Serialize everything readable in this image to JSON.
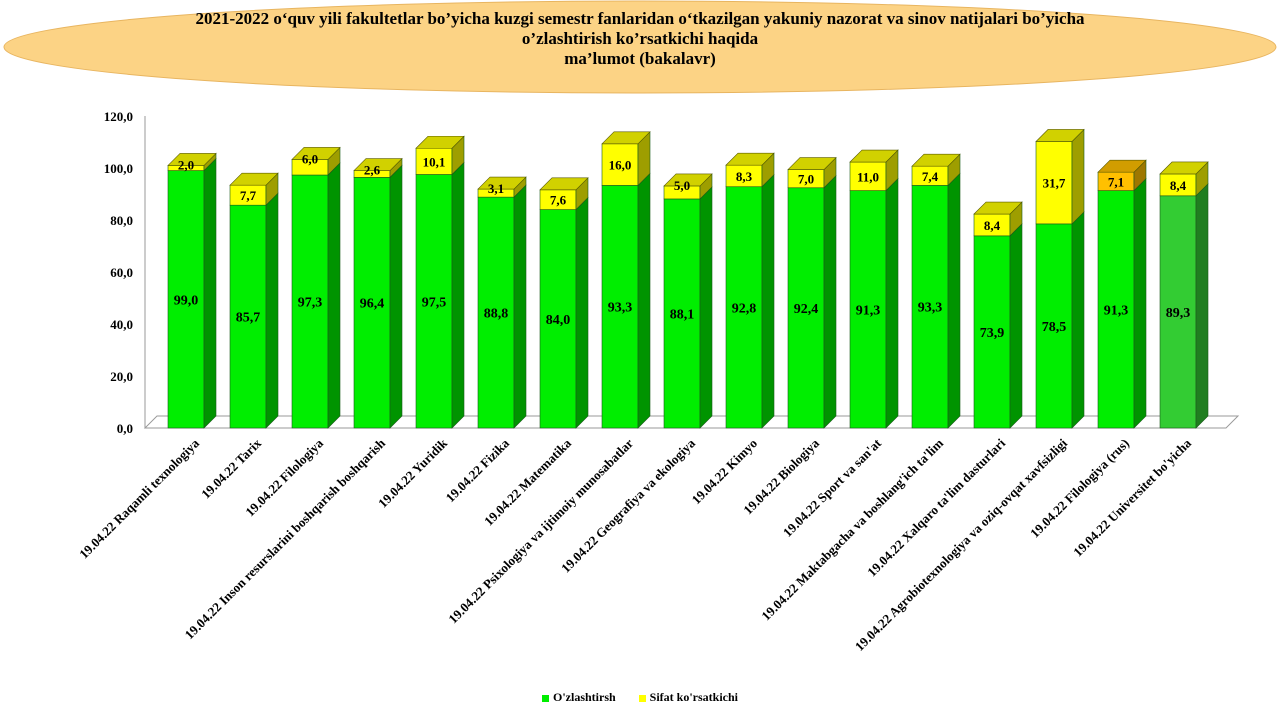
{
  "title": {
    "line1": "2021-2022 o‘quv yili fakultetlar bo’yicha  kuzgi semestr fanlaridan o‘tkazilgan yakuniy nazorat va sinov natijalari bo’yicha",
    "line2": "o’zlashtirish  ko’rsatkichi  haqida",
    "line3": "ma’lumot (bakalavr)",
    "banner_color": "#FCD385"
  },
  "chart_data": {
    "type": "bar",
    "stacked": true,
    "title": "2021-2022 o‘quv yili fakultetlar bo’yicha  kuzgi semestr fanlaridan o‘tkazilgan yakuniy nazorat va sinov natijalari bo’yicha o’zlashtirish  ko’rsatkichi  haqida ma’lumot (bakalavr)",
    "categories": [
      "19.04.22 Raqamli texnologiya",
      "19.04.22 Tarix",
      "19.04.22 Filologiya",
      "19.04.22 Inson resurslarini boshqarish boshqarish",
      "19.04.22 Yuridik",
      "19.04.22 Fizika",
      "19.04.22 Matematika",
      "19.04.22 Psixologiya va ijtimoiy munosabatlar",
      "19.04.22 Geografiya va ekologiya",
      "19.04.22 Kimyo",
      "19.04.22 Biologiya",
      "19.04.22 Sport va san'at",
      "19.04.22 Maktabgacha va boshlang'ich ta'lim",
      "19.04.22 Xalqaro ta'lim dasturlari",
      "19.04.22 Agrobiotexnologiya va oziq-ovqat xavfsizligi",
      "19.04.22 Filologiya (rus)",
      "19.04.22 Universitet bo'yicha"
    ],
    "series": [
      {
        "name": "O'zlashtirsh",
        "color": "#00EE00",
        "values": [
          99.0,
          85.7,
          97.3,
          96.4,
          97.5,
          88.8,
          84.0,
          93.3,
          88.1,
          92.8,
          92.4,
          91.3,
          93.3,
          73.9,
          78.5,
          91.3,
          89.3
        ],
        "labels": [
          "99,0",
          "85,7",
          "97,3",
          "96,4",
          "97,5",
          "88,8",
          "84,0",
          "93,3",
          "88,1",
          "92,8",
          "92,4",
          "91,3",
          "93,3",
          "73,9",
          "78,5",
          "91,3",
          "89,3"
        ]
      },
      {
        "name": "Sifat ko'rsatkichi",
        "color": "#FFFF00",
        "values": [
          2.0,
          7.7,
          6.0,
          2.6,
          10.1,
          3.1,
          7.6,
          16.0,
          5.0,
          8.3,
          7.0,
          11.0,
          7.4,
          8.4,
          31.7,
          7.1,
          8.4
        ],
        "labels": [
          "2,0",
          "7,7",
          "6,0",
          "2,6",
          "10,1",
          "3,1",
          "7,6",
          "16,0",
          "5,0",
          "8,3",
          "7,0",
          "11,0",
          "7,4",
          "8,4",
          "31,7",
          "7,1",
          "8,4"
        ]
      }
    ],
    "highlight_colors": {
      "last_bottom": "#33CC33",
      "filologiya_rus_top": "#FFC000"
    },
    "yticks": [
      "0,0",
      "20,0",
      "40,0",
      "60,0",
      "80,0",
      "100,0",
      "120,0"
    ],
    "ylim": [
      0,
      120
    ],
    "legend_position": "bottom",
    "grid": false
  }
}
